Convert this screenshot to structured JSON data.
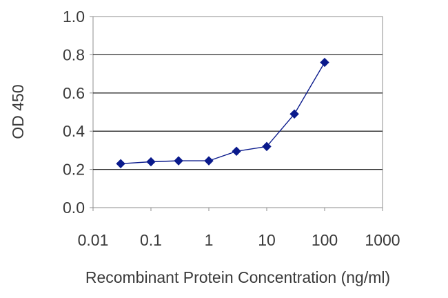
{
  "chart_data": {
    "type": "line",
    "title": "",
    "xlabel": "Recombinant Protein Concentration (ng/ml)",
    "ylabel": "OD 450",
    "x_scale": "log",
    "xlim": [
      0.01,
      1000
    ],
    "ylim": [
      0.0,
      1.0
    ],
    "x_ticks": [
      "0.01",
      "0.1",
      "1",
      "10",
      "100",
      "1000"
    ],
    "y_ticks": [
      "0.0",
      "0.2",
      "0.4",
      "0.6",
      "0.8",
      "1.0"
    ],
    "grid": "horizontal",
    "legend": "none",
    "series": [
      {
        "marker": "diamond",
        "color": "#0a1a8c",
        "x": [
          0.03,
          0.1,
          0.3,
          1,
          3,
          10,
          30,
          100
        ],
        "y": [
          0.23,
          0.24,
          0.245,
          0.245,
          0.295,
          0.32,
          0.49,
          0.76
        ]
      }
    ]
  }
}
